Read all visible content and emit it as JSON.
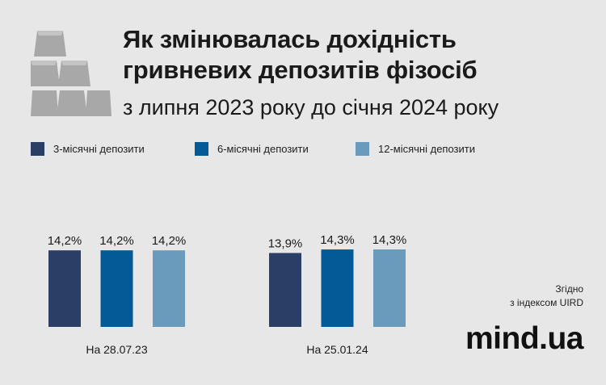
{
  "title_lines": [
    "Як змінювалась дохідність",
    "гривневих депозитів фізосіб"
  ],
  "subtitle": "з липня 2023 року до січня 2024 року",
  "legend": [
    {
      "label": "3-місячні депозити",
      "color": "#2b3f66"
    },
    {
      "label": "6-місячні депозити",
      "color": "#045a96"
    },
    {
      "label": "12-місячні депозити",
      "color": "#6a9bbc"
    }
  ],
  "source_lines": [
    "Згідно",
    "з індексом UIRD"
  ],
  "brand": "mind.ua",
  "chart_data": {
    "type": "bar",
    "categories": [
      "На 28.07.23",
      "На 25.01.24"
    ],
    "series": [
      {
        "name": "3-місячні депозити",
        "values": [
          14.2,
          13.9
        ],
        "labels": [
          "14,2%",
          "13,9%"
        ]
      },
      {
        "name": "6-місячні депозити",
        "values": [
          14.2,
          14.3
        ],
        "labels": [
          "14,2%",
          "14,3%"
        ]
      },
      {
        "name": "12-місячні депозити",
        "values": [
          14.2,
          14.3
        ],
        "labels": [
          "14,2%",
          "14,3%"
        ]
      }
    ],
    "grid": false,
    "legend_position": "top"
  }
}
